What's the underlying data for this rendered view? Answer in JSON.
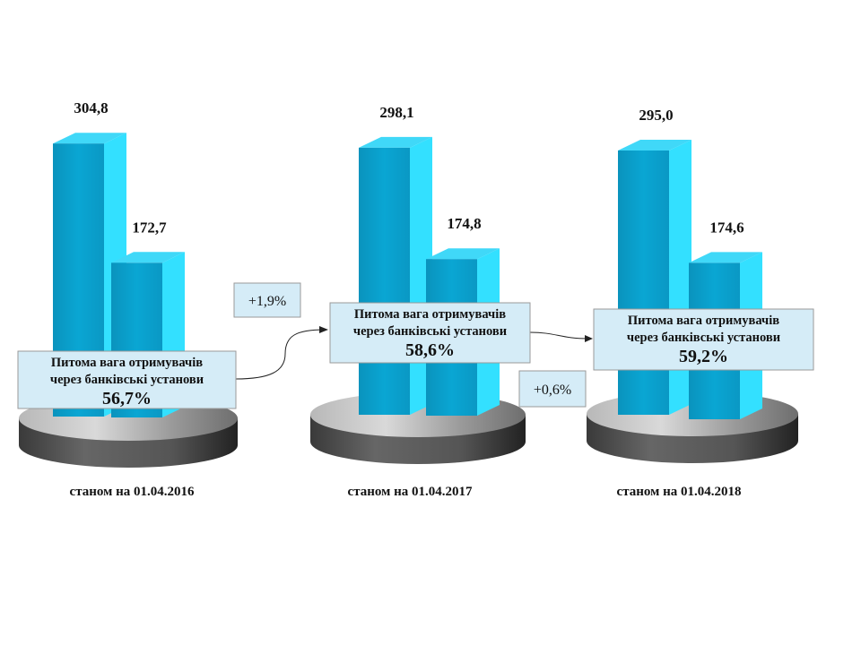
{
  "chart_data": {
    "type": "bar",
    "categories": [
      "станом на 01.04.2016",
      "станом на 01.04.2017",
      "станом на 01.04.2018"
    ],
    "series": [
      {
        "values": [
          304.8,
          298.1,
          295.0
        ],
        "labels": [
          "304,8",
          "298,1",
          "295,0"
        ]
      },
      {
        "values": [
          172.7,
          174.8,
          174.6
        ],
        "labels": [
          "172,7",
          "174,8",
          "174,6"
        ]
      }
    ],
    "share_boxes": [
      {
        "line1": "Питома вага отримувачів",
        "line2": "через банківські установи",
        "value": "56,7%"
      },
      {
        "line1": "Питома вага отримувачів",
        "line2": "через банківські установи",
        "value": "58,6%"
      },
      {
        "line1": "Питома вага отримувачів",
        "line2": "через банківські установи",
        "value": "59,2%"
      }
    ],
    "changes": [
      "+1,9%",
      "+0,6%"
    ],
    "colors": {
      "bar_front": "#0AA3D0",
      "bar_side": "#33E0FF",
      "bar_top": "#40D8F8",
      "pedestal": "#8C8C8C",
      "box_fill": "#D5ECF7"
    },
    "grid": false,
    "legend": "none"
  }
}
